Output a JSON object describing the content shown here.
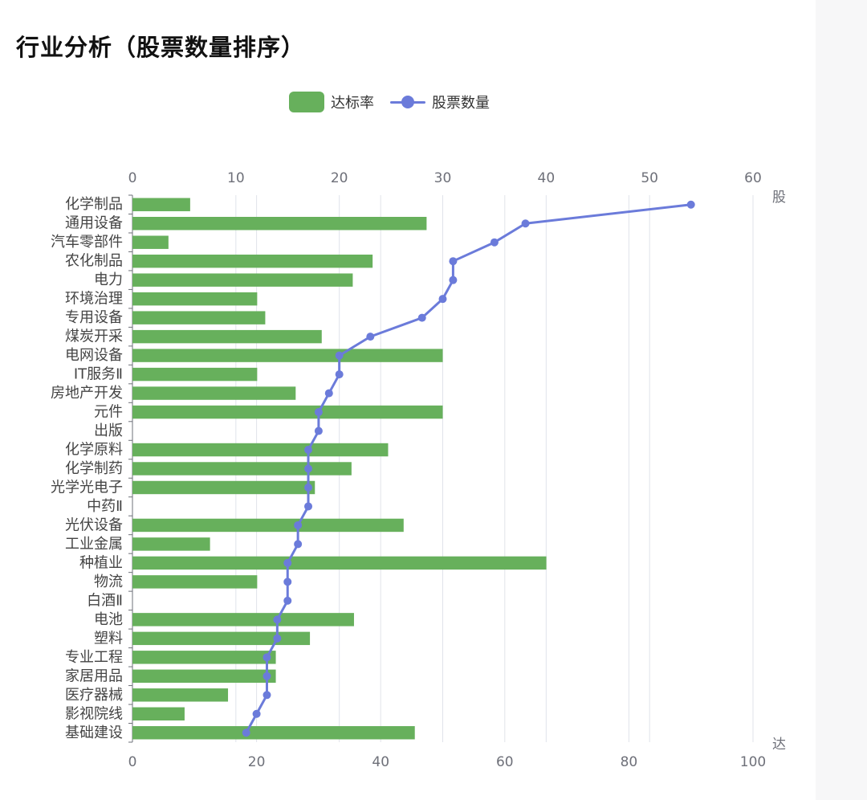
{
  "page": {
    "title": "行业分析（股票数量排序）"
  },
  "legend": {
    "bar_label": "达标率",
    "line_label": "股票数量"
  },
  "colors": {
    "bar": "#67b05c",
    "line": "#6b7bda",
    "grid": "#e0e3ea",
    "axis_text": "#6e7079",
    "category_text": "#444444"
  },
  "chart_data": {
    "type": "bar",
    "orientation": "horizontal",
    "categories": [
      "化学制品",
      "通用设备",
      "汽车零部件",
      "农化制品",
      "电力",
      "环境治理",
      "专用设备",
      "煤炭开采",
      "电网设备",
      "IT服务Ⅱ",
      "房地产开发",
      "元件",
      "出版",
      "化学原料",
      "化学制药",
      "光学光电子",
      "中药Ⅱ",
      "光伏设备",
      "工业金属",
      "种植业",
      "物流",
      "白酒Ⅱ",
      "电池",
      "塑料",
      "专业工程",
      "家居用品",
      "医疗器械",
      "影视院线",
      "基础建设"
    ],
    "series": [
      {
        "name": "达标率",
        "type": "bar",
        "axis": "bottom",
        "values": [
          9.3,
          47.4,
          5.8,
          38.7,
          35.5,
          20.1,
          21.4,
          30.5,
          50,
          20.1,
          26.3,
          50,
          0,
          41.2,
          35.3,
          29.4,
          0,
          43.7,
          12.5,
          66.7,
          20.1,
          0,
          35.7,
          28.6,
          23.1,
          23.1,
          15.4,
          8.4,
          45.5
        ]
      },
      {
        "name": "股票数量",
        "type": "line",
        "axis": "top",
        "values": [
          54,
          38,
          35,
          31,
          31,
          30,
          28,
          23,
          20,
          20,
          19,
          18,
          18,
          17,
          17,
          17,
          17,
          16,
          16,
          15,
          15,
          15,
          14,
          14,
          13,
          13,
          13,
          12,
          11
        ]
      }
    ],
    "x_bottom": {
      "min": 0,
      "max": 100,
      "ticks": [
        0,
        20,
        40,
        60,
        80,
        100
      ],
      "name": "达"
    },
    "x_top": {
      "min": 0,
      "max": 60,
      "ticks": [
        0,
        10,
        20,
        30,
        40,
        50,
        60
      ],
      "name": "股"
    },
    "grid": true,
    "legend_position": "top-center"
  }
}
